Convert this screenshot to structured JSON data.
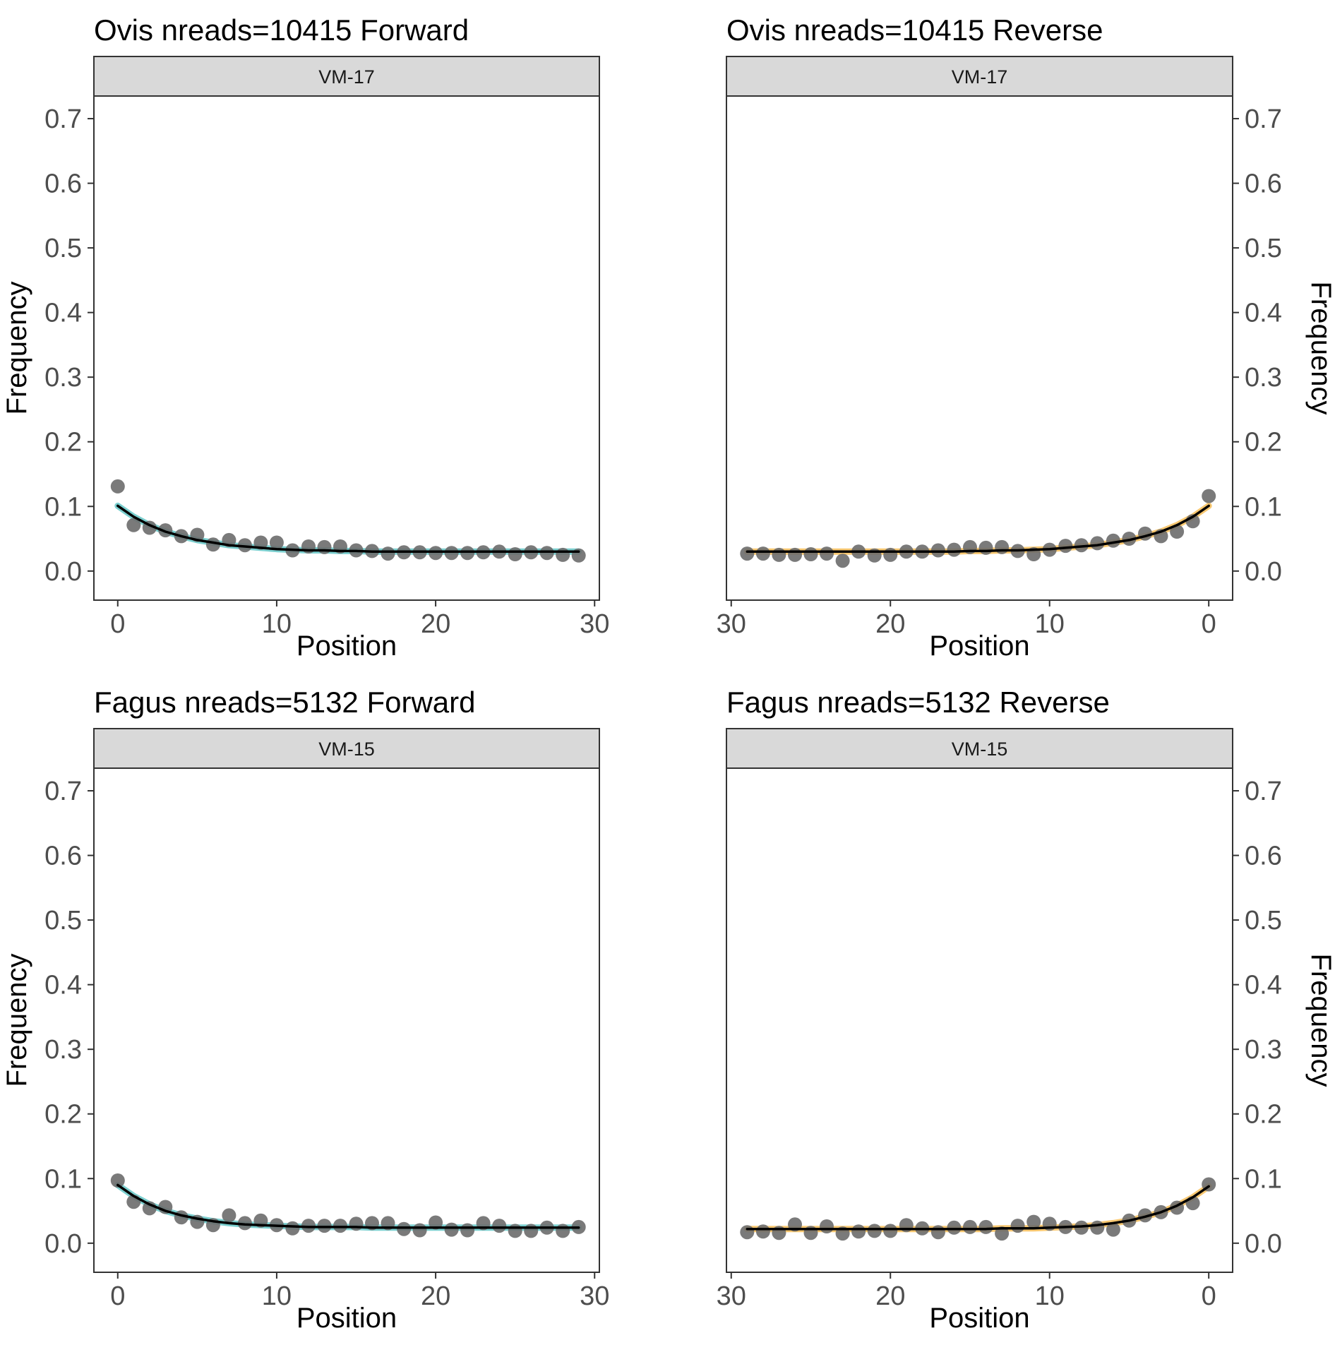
{
  "chart_data": [
    {
      "type": "scatter",
      "title": "Ovis nreads=10415 Forward",
      "facet": "VM-17",
      "xlabel": "Position",
      "ylabel": "Frequency",
      "x_ticks": [
        "0",
        "10",
        "20",
        "30"
      ],
      "y_ticks": [
        "0.0",
        "0.1",
        "0.2",
        "0.3",
        "0.4",
        "0.5",
        "0.6",
        "0.7"
      ],
      "xlim": [
        -1.5,
        30.3
      ],
      "ylim": [
        -0.045,
        0.735
      ],
      "x_reversed": false,
      "y_axis_side": "left",
      "grid": false,
      "band_color": "#4fbfbf",
      "points": {
        "x": [
          0,
          1,
          2,
          3,
          4,
          5,
          6,
          7,
          8,
          9,
          10,
          11,
          12,
          13,
          14,
          15,
          16,
          17,
          18,
          19,
          20,
          21,
          22,
          23,
          24,
          25,
          26,
          27,
          28,
          29
        ],
        "y": [
          0.131,
          0.071,
          0.067,
          0.063,
          0.054,
          0.056,
          0.041,
          0.048,
          0.04,
          0.044,
          0.044,
          0.032,
          0.038,
          0.037,
          0.038,
          0.032,
          0.031,
          0.027,
          0.029,
          0.029,
          0.028,
          0.028,
          0.028,
          0.029,
          0.03,
          0.026,
          0.029,
          0.028,
          0.025,
          0.024
        ]
      },
      "fit": {
        "x": [
          0,
          1,
          2,
          3,
          4,
          5,
          6,
          7,
          8,
          9,
          10,
          11,
          12,
          13,
          14,
          15,
          16,
          17,
          18,
          19,
          20,
          21,
          22,
          23,
          24,
          25,
          26,
          27,
          28,
          29
        ],
        "y": [
          0.101,
          0.084,
          0.071,
          0.061,
          0.054,
          0.048,
          0.044,
          0.04,
          0.038,
          0.036,
          0.034,
          0.033,
          0.032,
          0.032,
          0.031,
          0.031,
          0.03,
          0.03,
          0.03,
          0.03,
          0.03,
          0.03,
          0.03,
          0.03,
          0.03,
          0.03,
          0.03,
          0.03,
          0.03,
          0.03
        ]
      }
    },
    {
      "type": "scatter",
      "title": "Ovis nreads=10415 Reverse",
      "facet": "VM-17",
      "xlabel": "Position",
      "ylabel": "Frequency",
      "x_ticks": [
        "30",
        "20",
        "10",
        "0"
      ],
      "y_ticks": [
        "0.0",
        "0.1",
        "0.2",
        "0.3",
        "0.4",
        "0.5",
        "0.6",
        "0.7"
      ],
      "xlim": [
        30.3,
        -1.5
      ],
      "ylim": [
        -0.045,
        0.735
      ],
      "x_reversed": true,
      "y_axis_side": "right",
      "grid": false,
      "band_color": "#f5b642",
      "points": {
        "x": [
          0,
          1,
          2,
          3,
          4,
          5,
          6,
          7,
          8,
          9,
          10,
          11,
          12,
          13,
          14,
          15,
          16,
          17,
          18,
          19,
          20,
          21,
          22,
          23,
          24,
          25,
          26,
          27,
          28,
          29
        ],
        "y": [
          0.116,
          0.077,
          0.061,
          0.054,
          0.058,
          0.05,
          0.047,
          0.043,
          0.04,
          0.039,
          0.033,
          0.026,
          0.031,
          0.037,
          0.036,
          0.037,
          0.033,
          0.032,
          0.03,
          0.03,
          0.025,
          0.024,
          0.03,
          0.016,
          0.027,
          0.026,
          0.025,
          0.025,
          0.027,
          0.027
        ]
      },
      "fit": {
        "x": [
          0,
          1,
          2,
          3,
          4,
          5,
          6,
          7,
          8,
          9,
          10,
          11,
          12,
          13,
          14,
          15,
          16,
          17,
          18,
          19,
          20,
          21,
          22,
          23,
          24,
          25,
          26,
          27,
          28,
          29
        ],
        "y": [
          0.101,
          0.084,
          0.071,
          0.061,
          0.054,
          0.048,
          0.044,
          0.04,
          0.038,
          0.036,
          0.034,
          0.033,
          0.032,
          0.032,
          0.031,
          0.031,
          0.03,
          0.03,
          0.03,
          0.03,
          0.03,
          0.03,
          0.03,
          0.03,
          0.03,
          0.03,
          0.03,
          0.03,
          0.03,
          0.03
        ]
      }
    },
    {
      "type": "scatter",
      "title": "Fagus nreads=5132 Forward",
      "facet": "VM-15",
      "xlabel": "Position",
      "ylabel": "Frequency",
      "x_ticks": [
        "0",
        "10",
        "20",
        "30"
      ],
      "y_ticks": [
        "0.0",
        "0.1",
        "0.2",
        "0.3",
        "0.4",
        "0.5",
        "0.6",
        "0.7"
      ],
      "xlim": [
        -1.5,
        30.3
      ],
      "ylim": [
        -0.045,
        0.735
      ],
      "x_reversed": false,
      "y_axis_side": "left",
      "grid": false,
      "band_color": "#4fbfbf",
      "points": {
        "x": [
          0,
          1,
          2,
          3,
          4,
          5,
          6,
          7,
          8,
          9,
          10,
          11,
          12,
          13,
          14,
          15,
          16,
          17,
          18,
          19,
          20,
          21,
          22,
          23,
          24,
          25,
          26,
          27,
          28,
          29
        ],
        "y": [
          0.097,
          0.064,
          0.054,
          0.056,
          0.04,
          0.033,
          0.028,
          0.043,
          0.031,
          0.035,
          0.028,
          0.023,
          0.027,
          0.027,
          0.027,
          0.03,
          0.031,
          0.031,
          0.022,
          0.02,
          0.032,
          0.021,
          0.02,
          0.031,
          0.027,
          0.019,
          0.019,
          0.024,
          0.019,
          0.025
        ]
      },
      "fit": {
        "x": [
          0,
          1,
          2,
          3,
          4,
          5,
          6,
          7,
          8,
          9,
          10,
          11,
          12,
          13,
          14,
          15,
          16,
          17,
          18,
          19,
          20,
          21,
          22,
          23,
          24,
          25,
          26,
          27,
          28,
          29
        ],
        "y": [
          0.09,
          0.073,
          0.06,
          0.05,
          0.043,
          0.038,
          0.034,
          0.031,
          0.029,
          0.028,
          0.027,
          0.026,
          0.025,
          0.025,
          0.025,
          0.025,
          0.024,
          0.024,
          0.024,
          0.024,
          0.024,
          0.024,
          0.024,
          0.024,
          0.024,
          0.024,
          0.024,
          0.024,
          0.024,
          0.024
        ]
      }
    },
    {
      "type": "scatter",
      "title": "Fagus nreads=5132 Reverse",
      "facet": "VM-15",
      "xlabel": "Position",
      "ylabel": "Frequency",
      "x_ticks": [
        "30",
        "20",
        "10",
        "0"
      ],
      "y_ticks": [
        "0.0",
        "0.1",
        "0.2",
        "0.3",
        "0.4",
        "0.5",
        "0.6",
        "0.7"
      ],
      "xlim": [
        30.3,
        -1.5
      ],
      "ylim": [
        -0.045,
        0.735
      ],
      "x_reversed": true,
      "y_axis_side": "right",
      "grid": false,
      "band_color": "#f5b642",
      "points": {
        "x": [
          0,
          1,
          2,
          3,
          4,
          5,
          6,
          7,
          8,
          9,
          10,
          11,
          12,
          13,
          14,
          15,
          16,
          17,
          18,
          19,
          20,
          21,
          22,
          23,
          24,
          25,
          26,
          27,
          28,
          29
        ],
        "y": [
          0.091,
          0.062,
          0.055,
          0.048,
          0.043,
          0.035,
          0.021,
          0.024,
          0.024,
          0.025,
          0.03,
          0.033,
          0.027,
          0.015,
          0.025,
          0.025,
          0.024,
          0.017,
          0.023,
          0.028,
          0.019,
          0.019,
          0.018,
          0.015,
          0.026,
          0.016,
          0.029,
          0.016,
          0.018,
          0.017
        ]
      },
      "fit": {
        "x": [
          0,
          1,
          2,
          3,
          4,
          5,
          6,
          7,
          8,
          9,
          10,
          11,
          12,
          13,
          14,
          15,
          16,
          17,
          18,
          19,
          20,
          21,
          22,
          23,
          24,
          25,
          26,
          27,
          28,
          29
        ],
        "y": [
          0.088,
          0.071,
          0.058,
          0.048,
          0.041,
          0.035,
          0.031,
          0.028,
          0.026,
          0.025,
          0.024,
          0.023,
          0.023,
          0.023,
          0.022,
          0.022,
          0.022,
          0.022,
          0.022,
          0.022,
          0.022,
          0.022,
          0.022,
          0.022,
          0.022,
          0.022,
          0.022,
          0.022,
          0.022,
          0.022
        ]
      }
    }
  ]
}
